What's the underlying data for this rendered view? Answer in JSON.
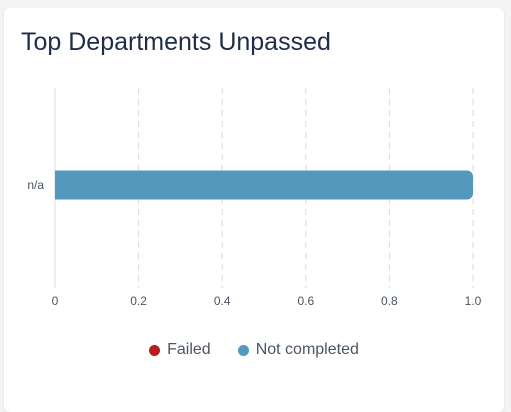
{
  "card": {
    "title": "Top Departments Unpassed"
  },
  "chart_data": {
    "type": "bar",
    "orientation": "horizontal",
    "stacked": true,
    "categories": [
      "n/a"
    ],
    "series": [
      {
        "name": "Failed",
        "values": [
          0
        ],
        "color": "#b91c1c"
      },
      {
        "name": "Not completed",
        "values": [
          1.0
        ],
        "color": "#5499bd"
      }
    ],
    "xlim": [
      0,
      1.0
    ],
    "xticks": [
      "0",
      "0.2",
      "0.4",
      "0.6",
      "0.8",
      "1.0"
    ],
    "grid": true,
    "legend_position": "bottom"
  }
}
